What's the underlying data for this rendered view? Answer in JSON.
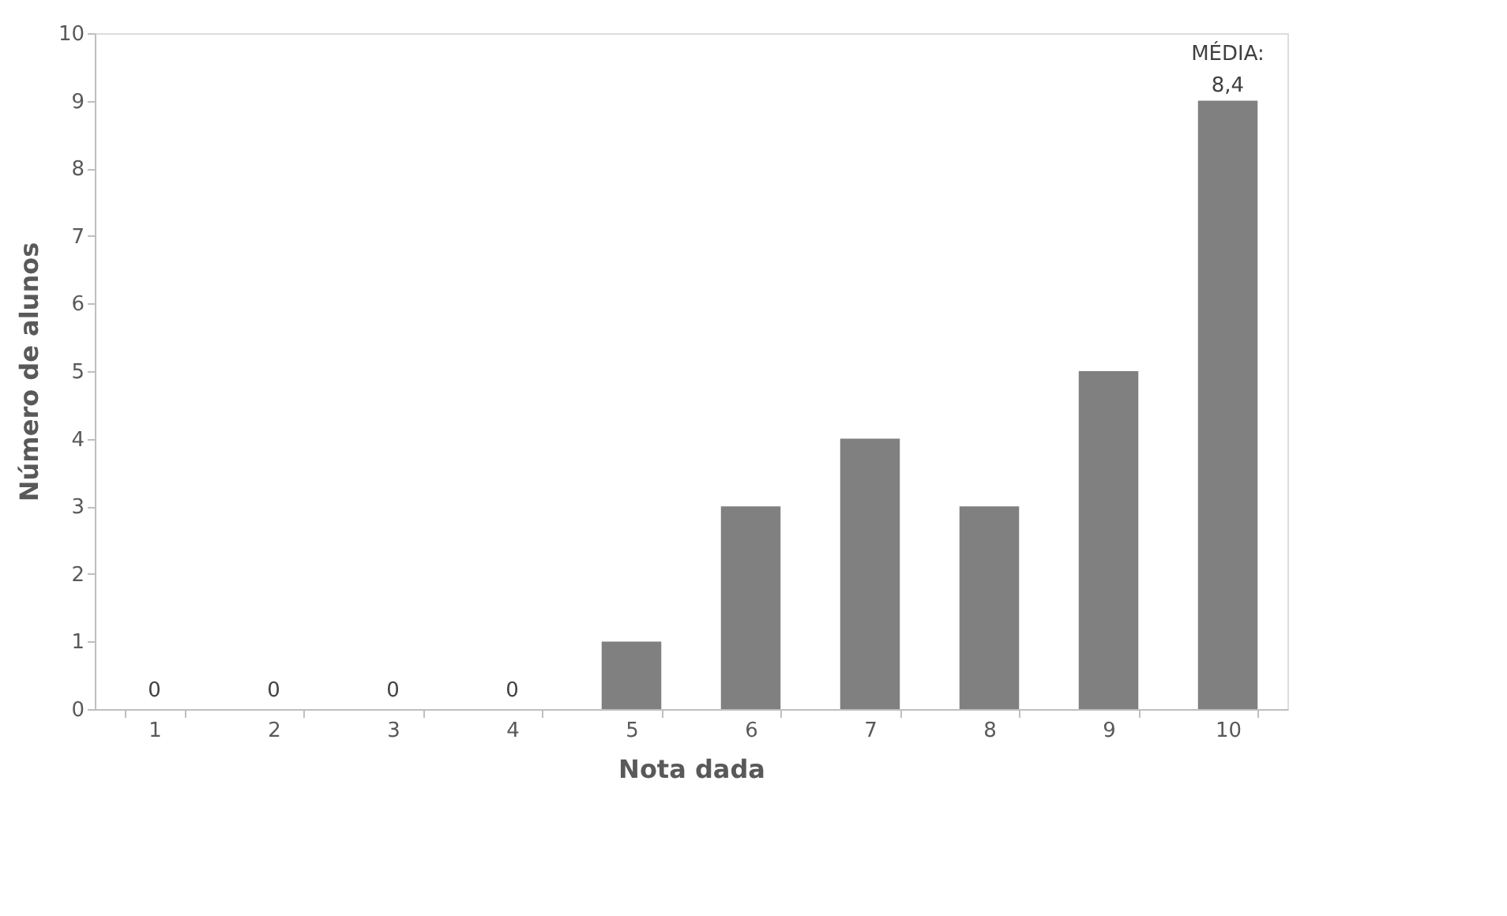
{
  "chart_data": {
    "type": "bar",
    "xlabel": "Nota dada",
    "ylabel": "Número de alunos",
    "categories": [
      "1",
      "2",
      "3",
      "4",
      "5",
      "6",
      "7",
      "8",
      "9",
      "10"
    ],
    "values": [
      0,
      0,
      0,
      0,
      1,
      3,
      4,
      3,
      5,
      9
    ],
    "value_labels": [
      "0",
      "0",
      "0",
      "0",
      null,
      null,
      null,
      null,
      null,
      null
    ],
    "color": "#808080",
    "ylim": [
      0,
      10
    ],
    "yticks": [
      0,
      1,
      2,
      3,
      4,
      5,
      6,
      7,
      8,
      9,
      10
    ],
    "grid": false,
    "annotations": [
      {
        "text": "MÉDIA:\n8,4",
        "x": "10",
        "y": 9
      }
    ]
  }
}
